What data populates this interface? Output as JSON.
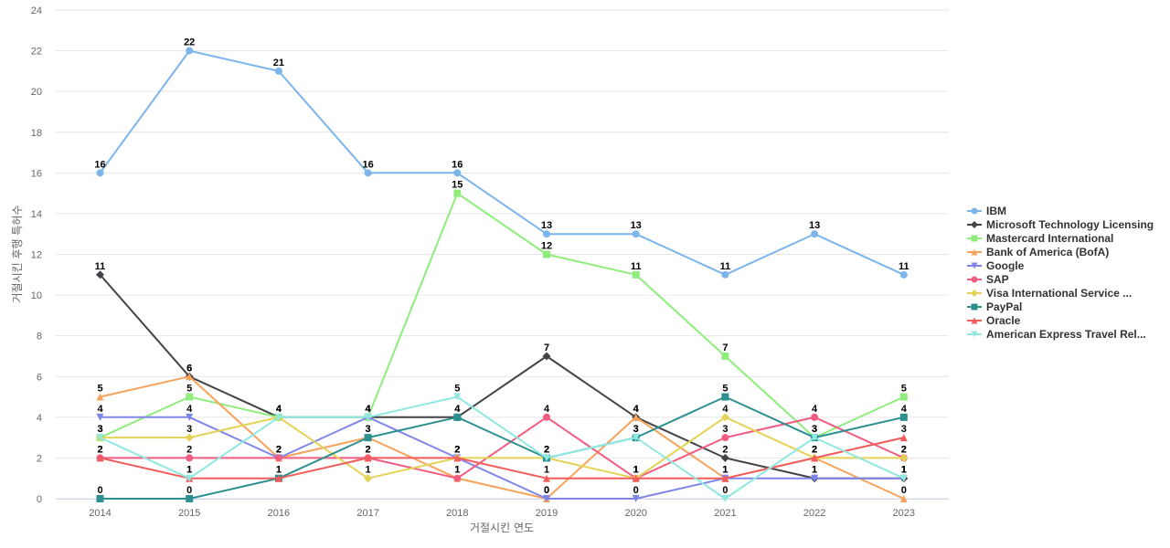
{
  "chart_data": {
    "type": "line",
    "xlabel": "거절시킨 연도",
    "ylabel": "거절시킨 후행 특허수",
    "ylim": [
      0,
      24
    ],
    "yticks": [
      0,
      2,
      4,
      6,
      8,
      10,
      12,
      14,
      16,
      18,
      20,
      22,
      24
    ],
    "categories": [
      "2014",
      "2015",
      "2016",
      "2017",
      "2018",
      "2019",
      "2020",
      "2021",
      "2022",
      "2023"
    ],
    "grid": true,
    "legend_position": "right",
    "data_labels": true,
    "series": [
      {
        "name": "IBM",
        "color": "#7cb5ec",
        "marker": "circle",
        "values": [
          16,
          22,
          21,
          16,
          16,
          13,
          13,
          11,
          13,
          11
        ]
      },
      {
        "name": "Microsoft Technology Licensing",
        "color": "#434348",
        "marker": "diamond",
        "values": [
          11,
          6,
          4,
          4,
          4,
          7,
          4,
          2,
          1,
          1
        ]
      },
      {
        "name": "Mastercard International",
        "color": "#90ed7d",
        "marker": "square",
        "values": [
          3,
          5,
          4,
          4,
          15,
          12,
          11,
          7,
          3,
          5
        ]
      },
      {
        "name": "Bank of America (BofA)",
        "color": "#f7a35c",
        "marker": "triangle",
        "values": [
          5,
          6,
          2,
          3,
          1,
          0,
          4,
          1,
          2,
          0
        ]
      },
      {
        "name": "Google",
        "color": "#8085e9",
        "marker": "triangle-down",
        "values": [
          4,
          4,
          2,
          4,
          2,
          0,
          0,
          1,
          1,
          1
        ]
      },
      {
        "name": "SAP",
        "color": "#f15c80",
        "marker": "circle",
        "values": [
          2,
          2,
          2,
          2,
          1,
          4,
          1,
          3,
          4,
          2
        ]
      },
      {
        "name": "Visa International Service ...",
        "color": "#e4d354",
        "marker": "diamond",
        "values": [
          3,
          3,
          4,
          1,
          2,
          2,
          1,
          4,
          2,
          2
        ]
      },
      {
        "name": "PayPal",
        "color": "#2b908f",
        "marker": "square",
        "values": [
          0,
          0,
          1,
          3,
          4,
          2,
          3,
          5,
          3,
          4
        ]
      },
      {
        "name": "Oracle",
        "color": "#f45b5b",
        "marker": "triangle",
        "values": [
          2,
          1,
          1,
          2,
          2,
          1,
          1,
          1,
          2,
          3
        ]
      },
      {
        "name": "American Express Travel Rel...",
        "color": "#91e8e1",
        "marker": "triangle-down",
        "values": [
          3,
          1,
          4,
          4,
          5,
          2,
          3,
          0,
          3,
          1
        ]
      }
    ],
    "point_labels": [
      [
        16,
        22,
        21,
        16,
        16,
        13,
        13,
        11,
        13,
        11
      ],
      [
        11,
        6,
        4,
        4,
        4,
        7,
        4,
        2,
        1,
        1
      ],
      [
        3,
        5,
        4,
        4,
        15,
        12,
        11,
        7,
        3,
        5
      ],
      [
        5,
        6,
        2,
        3,
        1,
        0,
        4,
        1,
        2,
        0
      ],
      [
        4,
        4,
        2,
        4,
        2,
        0,
        0,
        1,
        1,
        1
      ],
      [
        2,
        2,
        2,
        2,
        1,
        4,
        1,
        3,
        4,
        2
      ],
      [
        3,
        3,
        4,
        1,
        2,
        2,
        1,
        4,
        2,
        2
      ],
      [
        0,
        0,
        1,
        3,
        4,
        2,
        3,
        5,
        3,
        4
      ],
      [
        2,
        1,
        1,
        2,
        2,
        1,
        1,
        1,
        2,
        3
      ],
      [
        3,
        1,
        4,
        4,
        5,
        2,
        3,
        0,
        3,
        1
      ]
    ]
  }
}
